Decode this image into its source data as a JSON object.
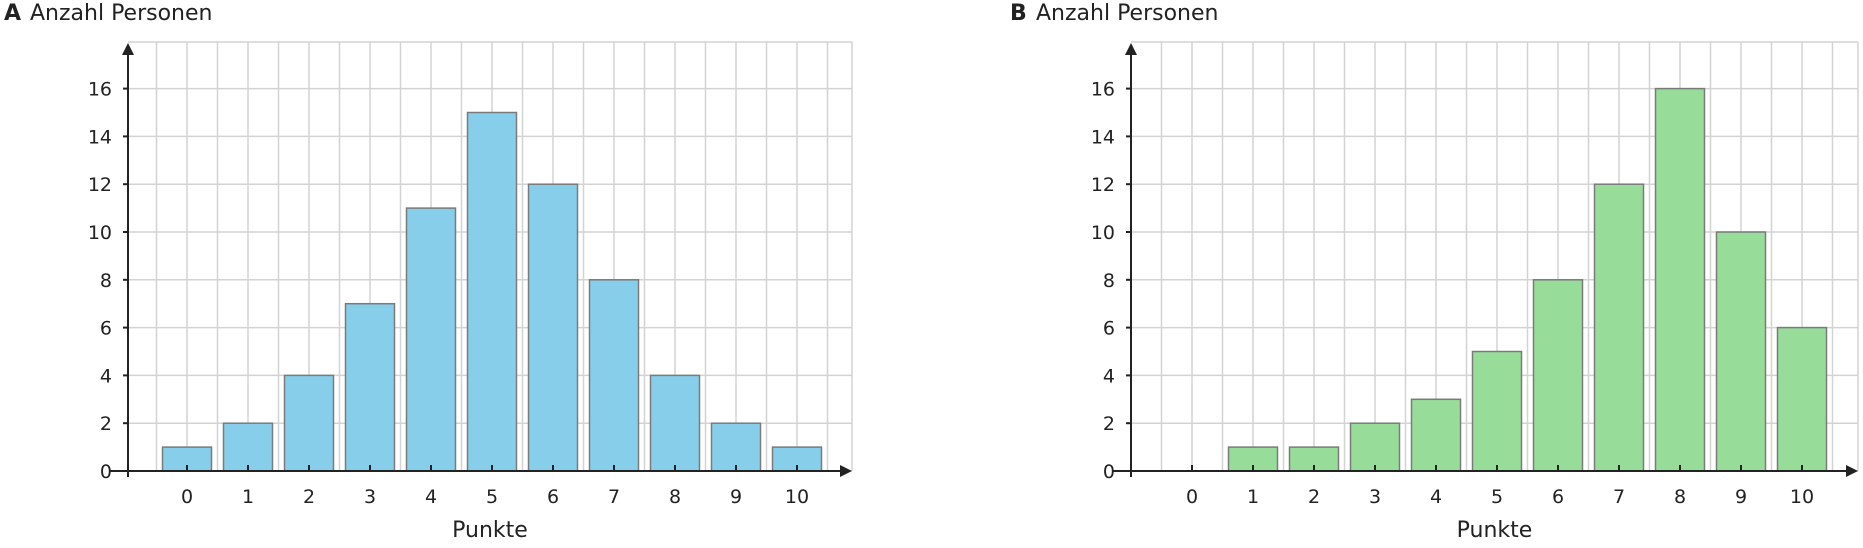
{
  "chart_data": [
    {
      "type": "bar",
      "panel_label": "A",
      "title": "Anzahl Personen",
      "xlabel": "Punkte",
      "ylabel": "Anzahl Personen",
      "categories": [
        "0",
        "1",
        "2",
        "3",
        "4",
        "5",
        "6",
        "7",
        "8",
        "9",
        "10"
      ],
      "values": [
        1,
        2,
        4,
        7,
        11,
        15,
        12,
        8,
        4,
        2,
        1
      ],
      "y_ticks": [
        "0",
        "2",
        "4",
        "6",
        "8",
        "10",
        "12",
        "14",
        "16"
      ],
      "ylim": [
        0,
        17.8
      ],
      "grid": true,
      "bar_color": "#87ceeb"
    },
    {
      "type": "bar",
      "panel_label": "B",
      "title": "Anzahl Personen",
      "xlabel": "Punkte",
      "ylabel": "Anzahl Personen",
      "categories": [
        "0",
        "1",
        "2",
        "3",
        "4",
        "5",
        "6",
        "7",
        "8",
        "9",
        "10"
      ],
      "values": [
        0,
        1,
        1,
        2,
        3,
        5,
        8,
        12,
        16,
        10,
        6
      ],
      "y_ticks": [
        "0",
        "2",
        "4",
        "6",
        "8",
        "10",
        "12",
        "14",
        "16"
      ],
      "ylim": [
        0,
        17.8
      ],
      "grid": true,
      "bar_color": "#98dc9a"
    }
  ]
}
